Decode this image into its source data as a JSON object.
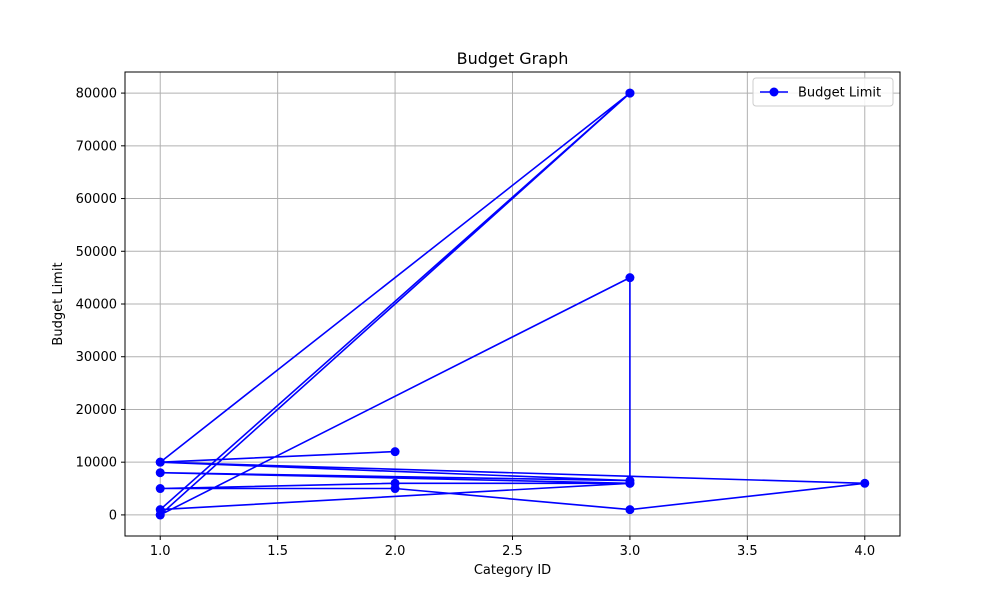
{
  "chart_data": {
    "type": "line",
    "title": "Budget Graph",
    "xlabel": "Category ID",
    "ylabel": "Budget Limit",
    "xlim": [
      0.85,
      4.15
    ],
    "ylim": [
      -4000,
      84000
    ],
    "xticks": [
      1.0,
      1.5,
      2.0,
      2.5,
      3.0,
      3.5,
      4.0
    ],
    "xtick_labels": [
      "1.0",
      "1.5",
      "2.0",
      "2.5",
      "3.0",
      "3.5",
      "4.0"
    ],
    "yticks": [
      0,
      10000,
      20000,
      30000,
      40000,
      50000,
      60000,
      70000,
      80000
    ],
    "ytick_labels": [
      "0",
      "10000",
      "20000",
      "30000",
      "40000",
      "50000",
      "60000",
      "70000",
      "80000"
    ],
    "grid": true,
    "legend_position": "top-right",
    "series": [
      {
        "name": "Budget Limit",
        "color": "#0000ff",
        "marker": "circle",
        "x": [
          2,
          1,
          3,
          1,
          3,
          3,
          1,
          3,
          1,
          4,
          3,
          2,
          1,
          2,
          3,
          1,
          3,
          1
        ],
        "y": [
          12000,
          10000,
          80000,
          0,
          45000,
          6000,
          8000,
          6500,
          10000,
          6000,
          1000,
          5000,
          5000,
          6000,
          6000,
          1000,
          80000,
          0
        ]
      }
    ]
  }
}
